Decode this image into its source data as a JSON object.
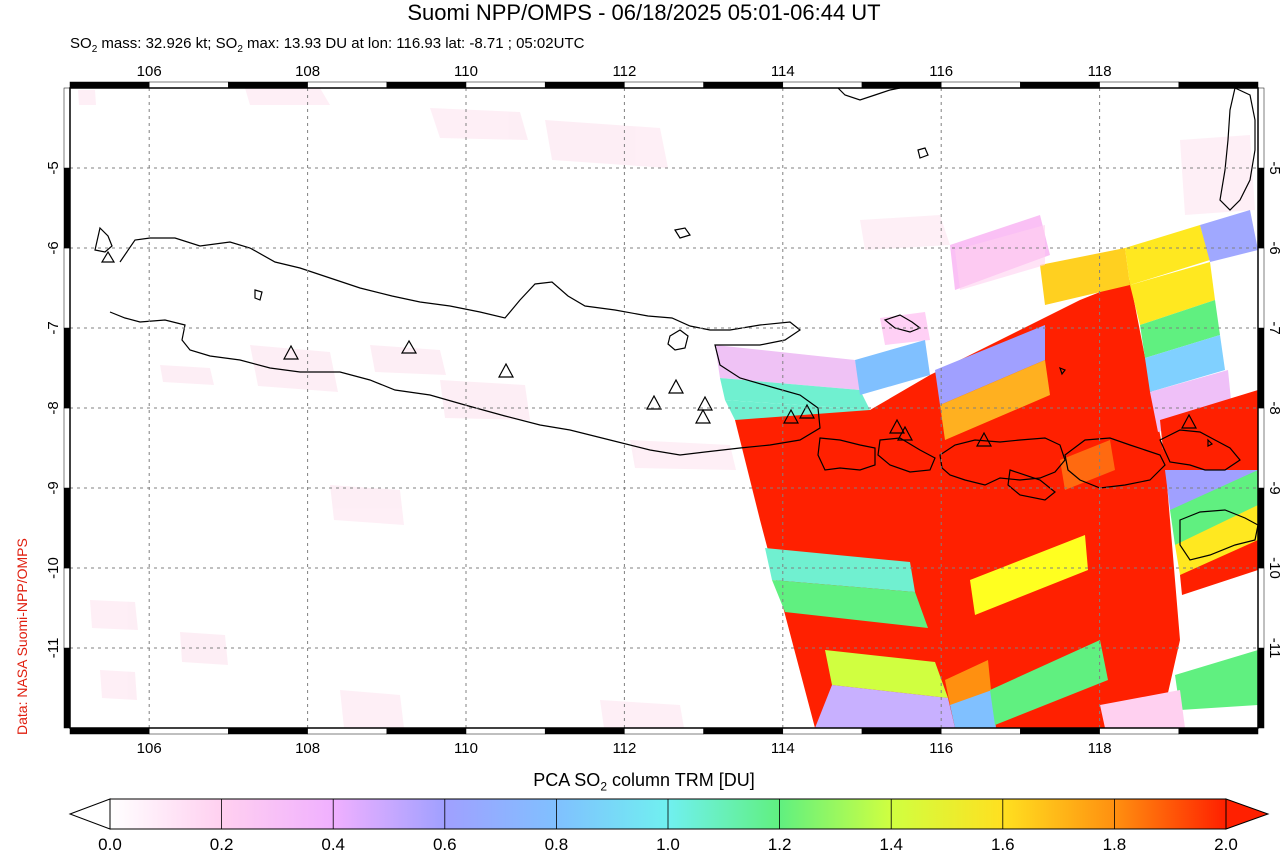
{
  "title": "Suomi NPP/OMPS - 06/18/2025 05:01-06:44 UT",
  "subtitle": {
    "part1": "SO",
    "sub1": "2",
    "part2": " mass: 32.926 kt; SO",
    "sub2": "2",
    "part3": " max: 13.93 DU at lon: 116.93 lat: -8.71 ; 05:02UTC"
  },
  "credit": "Data: NASA Suomi-NPP/OMPS",
  "map": {
    "lon_range": [
      105.0,
      120.0
    ],
    "lat_range": [
      -12.0,
      -4.0
    ],
    "lon_ticks": [
      "106",
      "108",
      "110",
      "112",
      "114",
      "116",
      "118"
    ],
    "lat_ticks": [
      "-5",
      "-6",
      "-7",
      "-8",
      "-9",
      "-10",
      "-11"
    ],
    "grid": true,
    "volcano_marker": "triangle-icon"
  },
  "colorbar": {
    "title_pre": "PCA SO",
    "title_sub": "2",
    "title_post": " column TRM [DU]",
    "ticks": [
      "0.0",
      "0.2",
      "0.4",
      "0.6",
      "0.8",
      "1.0",
      "1.2",
      "1.4",
      "1.6",
      "1.8",
      "2.0"
    ],
    "colors": [
      "#ffffff",
      "#ffd0f0",
      "#f0b0ff",
      "#a0a0ff",
      "#80c0ff",
      "#70f0f0",
      "#60f080",
      "#d0ff40",
      "#ffe020",
      "#ff9010",
      "#ff2000"
    ]
  }
}
